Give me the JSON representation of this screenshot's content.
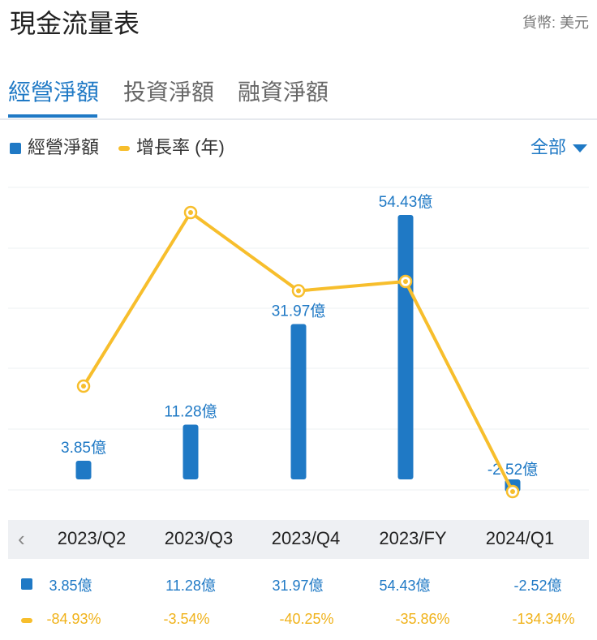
{
  "header": {
    "title": "現金流量表",
    "currency": "貨幣: 美元"
  },
  "tabs": [
    {
      "label": "經營淨額",
      "active": true
    },
    {
      "label": "投資淨額",
      "active": false
    },
    {
      "label": "融資淨額",
      "active": false
    }
  ],
  "legend": {
    "bar_label": "經營淨額",
    "line_label": "增長率 (年)"
  },
  "filter": {
    "label": "全部"
  },
  "colors": {
    "bar": "#1f79c5",
    "line": "#f7be2c",
    "grid": "#eef0f3"
  },
  "chart_data": {
    "type": "bar",
    "categories": [
      "2023/Q2",
      "2023/Q3",
      "2023/Q4",
      "2023/FY",
      "2024/Q1"
    ],
    "series": [
      {
        "name": "經營淨額",
        "values": [
          3.85,
          11.28,
          31.97,
          54.43,
          -2.52
        ],
        "labels": [
          "3.85億",
          "11.28億",
          "31.97億",
          "54.43億",
          "-2.52億"
        ]
      },
      {
        "name": "增長率 (年)",
        "type": "line",
        "values": [
          -84.93,
          -3.54,
          -40.25,
          -35.86,
          -134.34
        ],
        "labels": [
          "-84.93%",
          "-3.54%",
          "-40.25%",
          "-35.86%",
          "-134.34%"
        ]
      }
    ],
    "grid": true
  },
  "table": {
    "bar_values": [
      "3.85億",
      "11.28億",
      "31.97億",
      "54.43億",
      "-2.52億"
    ],
    "line_values": [
      "-84.93%",
      "-3.54%",
      "-40.25%",
      "-35.86%",
      "-134.34%"
    ]
  }
}
